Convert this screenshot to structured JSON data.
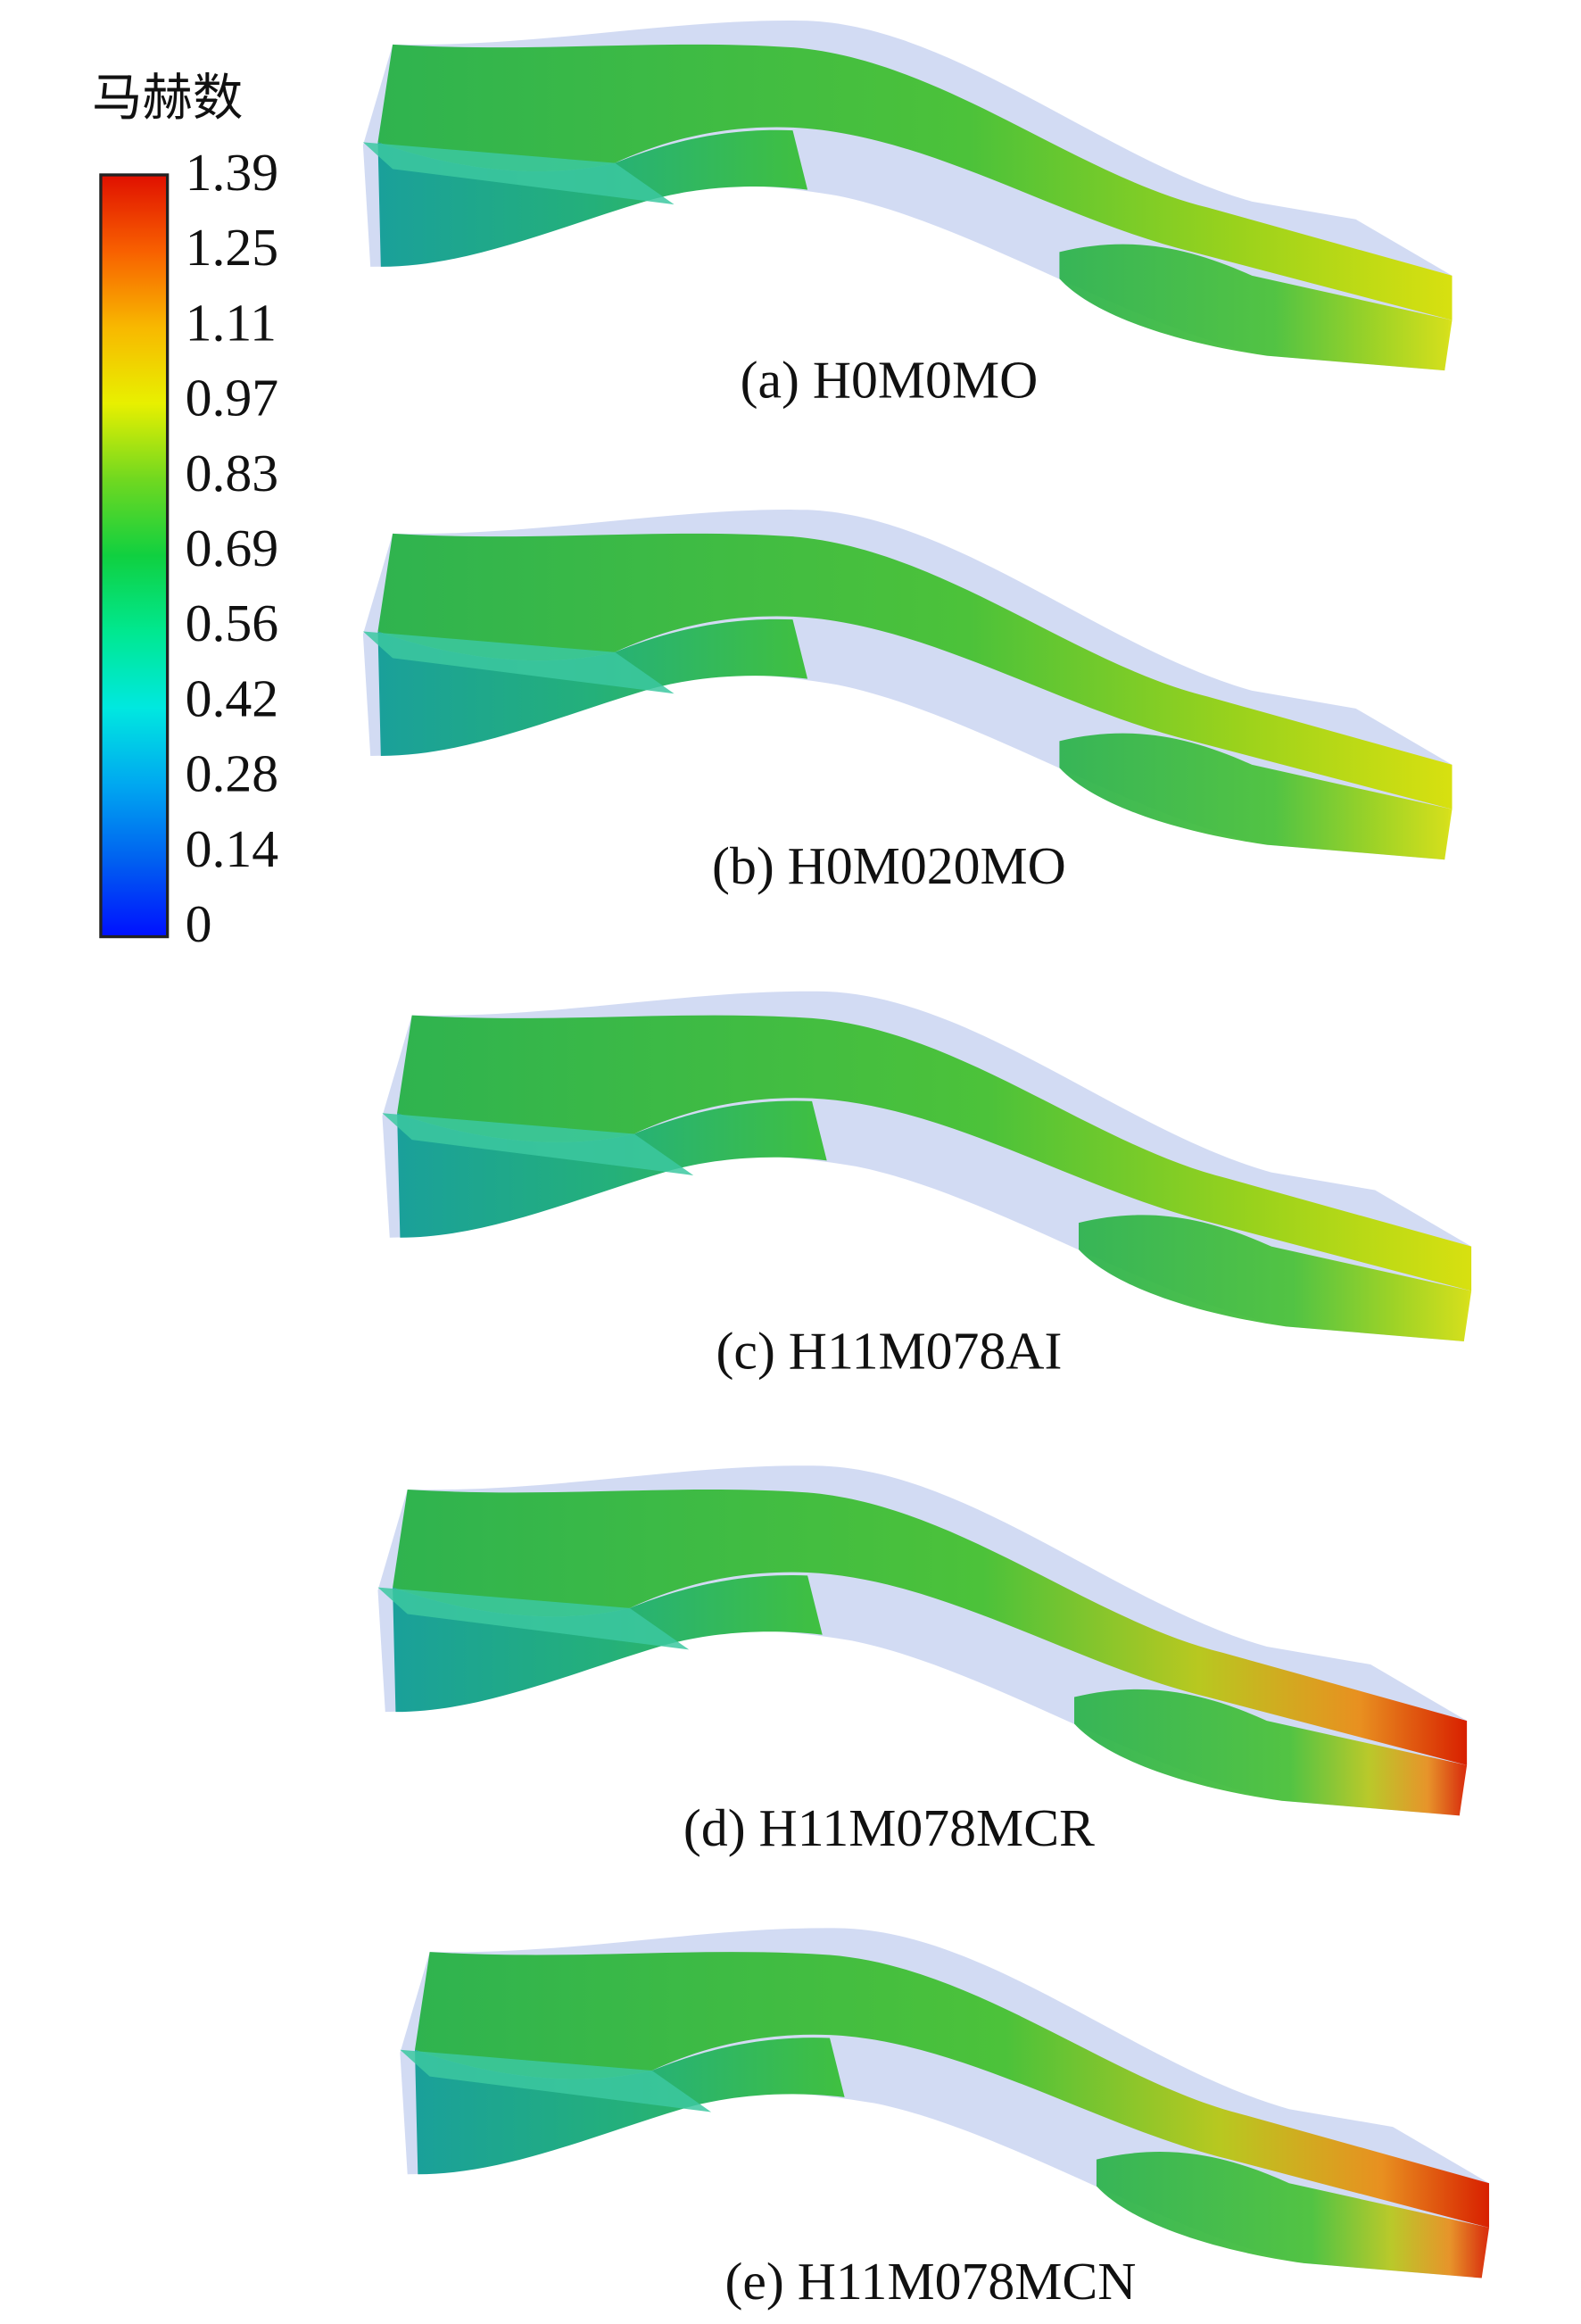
{
  "legend": {
    "title": "马赫数",
    "ticks": [
      1.39,
      1.25,
      1.11,
      0.97,
      0.83,
      0.69,
      0.56,
      0.42,
      0.28,
      0.14,
      0
    ]
  },
  "panels": [
    {
      "caption": "(a) H0M0MO"
    },
    {
      "caption": "(b) H0M020MO"
    },
    {
      "caption": "(c) H11M078AI"
    },
    {
      "caption": "(d) H11M078MCR"
    },
    {
      "caption": "(e) H11M078MCN"
    }
  ]
}
